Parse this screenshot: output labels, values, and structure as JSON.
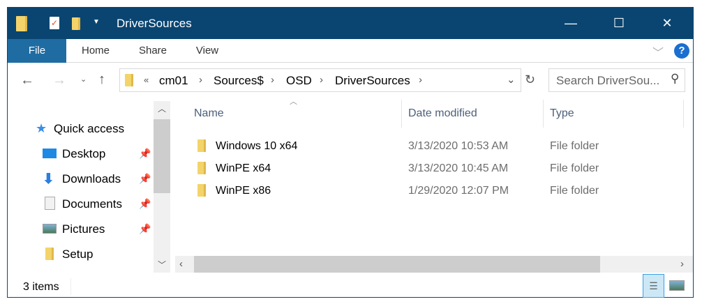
{
  "window": {
    "title": "DriverSources",
    "minimize": "—",
    "maximize": "☐",
    "close": "✕"
  },
  "ribbon": {
    "tabs": [
      {
        "label": "File"
      },
      {
        "label": "Home"
      },
      {
        "label": "Share"
      },
      {
        "label": "View"
      }
    ],
    "help": "?",
    "accent": "#1f6ca3"
  },
  "address": {
    "overflow": "«",
    "crumbs": [
      "cm01",
      "Sources$",
      "OSD",
      "DriverSources"
    ]
  },
  "search": {
    "placeholder": "Search DriverSou..."
  },
  "sidebar": {
    "quick_access": "Quick access",
    "items": [
      {
        "label": "Desktop",
        "icon": "desktop-icon",
        "pinned": true
      },
      {
        "label": "Downloads",
        "icon": "download-icon",
        "pinned": true
      },
      {
        "label": "Documents",
        "icon": "documents-icon",
        "pinned": true
      },
      {
        "label": "Pictures",
        "icon": "pictures-icon",
        "pinned": true
      },
      {
        "label": "Setup",
        "icon": "folder-icon",
        "pinned": false
      }
    ]
  },
  "columns": {
    "name": "Name",
    "date": "Date modified",
    "type": "Type"
  },
  "files": [
    {
      "name": "Windows 10 x64",
      "date": "3/13/2020 10:53 AM",
      "type": "File folder"
    },
    {
      "name": "WinPE x64",
      "date": "3/13/2020 10:45 AM",
      "type": "File folder"
    },
    {
      "name": "WinPE x86",
      "date": "1/29/2020 12:07 PM",
      "type": "File folder"
    }
  ],
  "status": {
    "count": "3 items"
  }
}
